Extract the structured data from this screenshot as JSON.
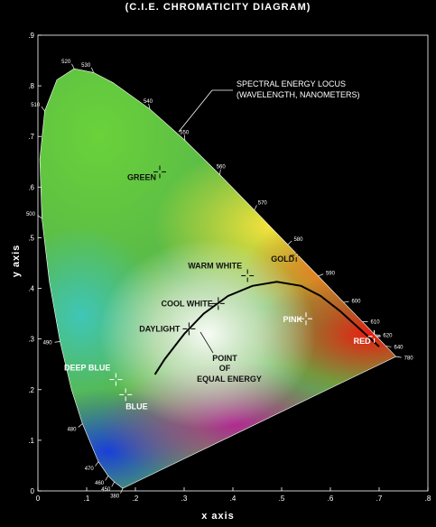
{
  "chart_data": {
    "type": "diagram",
    "title": "(C.I.E. CHROMATICITY DIAGRAM)",
    "xlabel": "x axis",
    "ylabel": "y axis",
    "xlim": [
      0,
      0.8
    ],
    "ylim": [
      0,
      0.9
    ],
    "xticks": [
      0,
      0.1,
      0.2,
      0.3,
      0.4,
      0.5,
      0.6,
      0.7,
      0.8
    ],
    "xtick_labels": [
      "0",
      ".1",
      ".2",
      ".3",
      ".4",
      ".5",
      ".6",
      ".7",
      ".8"
    ],
    "yticks": [
      0,
      0.1,
      0.2,
      0.3,
      0.4,
      0.5,
      0.6,
      0.7,
      0.8,
      0.9
    ],
    "ytick_labels": [
      "0",
      ".1",
      ".2",
      ".3",
      ".4",
      ".5",
      ".6",
      ".7",
      ".8",
      ".9"
    ],
    "locus_annotation": [
      "SPECTRAL ENERGY LOCUS",
      "(WAVELENGTH, NANOMETERS)"
    ],
    "spectral_locus": [
      {
        "x": 0.1741,
        "y": 0.005,
        "label": "380"
      },
      {
        "x": 0.1566,
        "y": 0.0177,
        "label": "450"
      },
      {
        "x": 0.144,
        "y": 0.0297,
        "label": "460"
      },
      {
        "x": 0.1241,
        "y": 0.0578,
        "label": "470"
      },
      {
        "x": 0.0913,
        "y": 0.1327,
        "label": "480"
      },
      {
        "x": 0.0687,
        "y": 0.2007,
        "label": ""
      },
      {
        "x": 0.0454,
        "y": 0.295,
        "label": "490"
      },
      {
        "x": 0.0235,
        "y": 0.4127,
        "label": ""
      },
      {
        "x": 0.0082,
        "y": 0.5384,
        "label": "500"
      },
      {
        "x": 0.0039,
        "y": 0.6548,
        "label": ""
      },
      {
        "x": 0.0139,
        "y": 0.7502,
        "label": "510"
      },
      {
        "x": 0.0389,
        "y": 0.812,
        "label": ""
      },
      {
        "x": 0.0743,
        "y": 0.8338,
        "label": "520"
      },
      {
        "x": 0.1142,
        "y": 0.8262,
        "label": "530"
      },
      {
        "x": 0.1547,
        "y": 0.8059,
        "label": ""
      },
      {
        "x": 0.2296,
        "y": 0.7543,
        "label": "540"
      },
      {
        "x": 0.3016,
        "y": 0.6923,
        "label": "550"
      },
      {
        "x": 0.3731,
        "y": 0.6245,
        "label": "560"
      },
      {
        "x": 0.4441,
        "y": 0.5547,
        "label": "570"
      },
      {
        "x": 0.5125,
        "y": 0.4866,
        "label": "580"
      },
      {
        "x": 0.5752,
        "y": 0.4242,
        "label": "590"
      },
      {
        "x": 0.627,
        "y": 0.3725,
        "label": "600"
      },
      {
        "x": 0.6658,
        "y": 0.334,
        "label": "610"
      },
      {
        "x": 0.6915,
        "y": 0.3083,
        "label": "620"
      },
      {
        "x": 0.714,
        "y": 0.2859,
        "label": "640"
      },
      {
        "x": 0.7347,
        "y": 0.2653,
        "label": "780"
      }
    ],
    "planckian_locus": [
      {
        "x": 0.24,
        "y": 0.23
      },
      {
        "x": 0.26,
        "y": 0.26
      },
      {
        "x": 0.3,
        "y": 0.31
      },
      {
        "x": 0.34,
        "y": 0.35
      },
      {
        "x": 0.39,
        "y": 0.385
      },
      {
        "x": 0.44,
        "y": 0.405
      },
      {
        "x": 0.49,
        "y": 0.413
      },
      {
        "x": 0.54,
        "y": 0.405
      },
      {
        "x": 0.58,
        "y": 0.385
      },
      {
        "x": 0.62,
        "y": 0.355
      },
      {
        "x": 0.66,
        "y": 0.32
      },
      {
        "x": 0.7,
        "y": 0.285
      }
    ],
    "points": [
      {
        "label": "GREEN",
        "x": 0.25,
        "y": 0.63,
        "dark": true
      },
      {
        "label": "GOLD",
        "x": 0.53,
        "y": 0.465,
        "dark": true
      },
      {
        "label": "WARM WHITE",
        "x": 0.43,
        "y": 0.425,
        "dark": true
      },
      {
        "label": "COOL WHITE",
        "x": 0.37,
        "y": 0.37,
        "dark": true
      },
      {
        "label": "DAYLIGHT",
        "x": 0.31,
        "y": 0.32,
        "dark": true
      },
      {
        "label": "PINK",
        "x": 0.55,
        "y": 0.34,
        "dark": false
      },
      {
        "label": "RED",
        "x": 0.69,
        "y": 0.305,
        "dark": false
      },
      {
        "label": "DEEP BLUE",
        "x": 0.16,
        "y": 0.22,
        "dark": false
      },
      {
        "label": "BLUE",
        "x": 0.18,
        "y": 0.19,
        "dark": false
      }
    ],
    "equal_energy": {
      "x": 0.333,
      "y": 0.333,
      "label": [
        "POINT",
        "OF",
        "EQUAL ENERGY"
      ]
    }
  }
}
